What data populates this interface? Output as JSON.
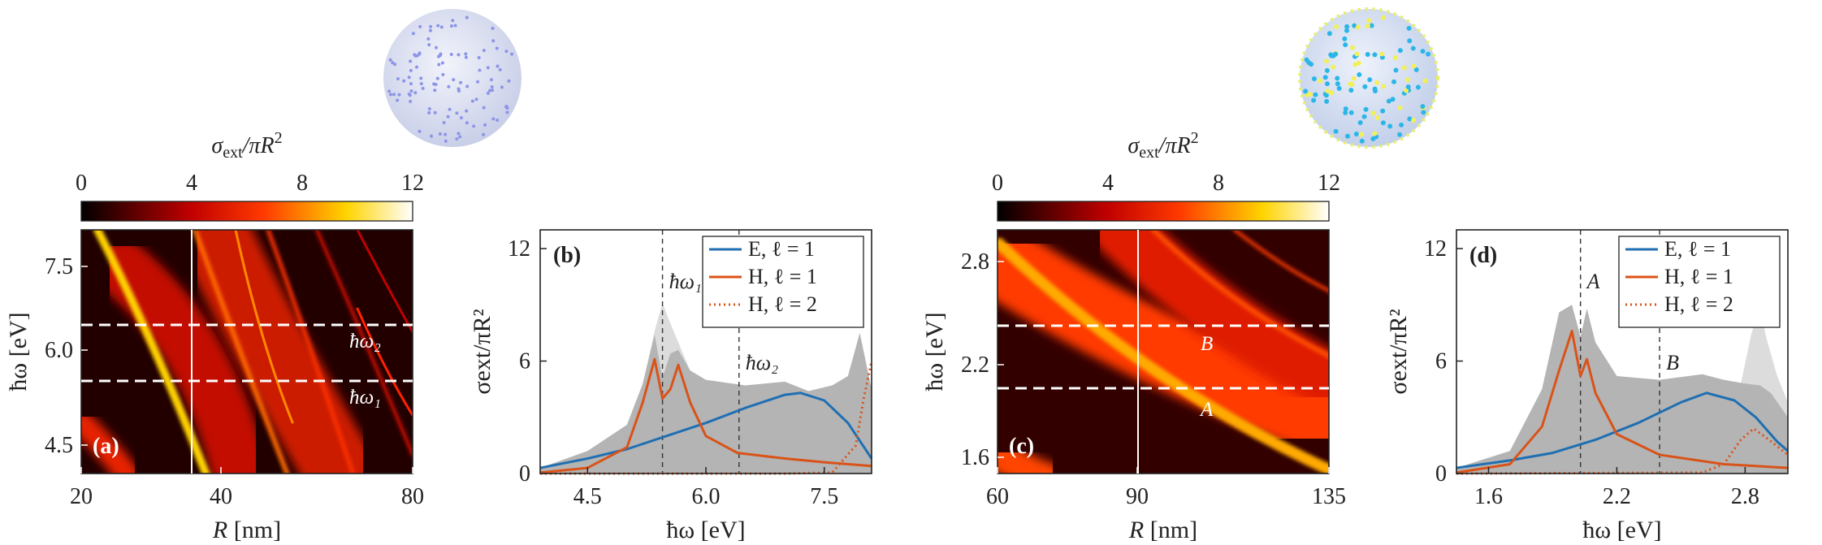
{
  "chart_data": [
    {
      "id": "a",
      "type": "heatmap",
      "panel_label": "(a)",
      "colorbar": {
        "label_main": "σ",
        "label_sub": "ext",
        "label_rest": "/πR",
        "label_sup": "2",
        "ticks": [
          "0",
          "4",
          "8",
          "12"
        ],
        "range": [
          0,
          12
        ]
      },
      "xlabel_var": "R",
      "xlabel_unit": "[nm]",
      "ylabel": "ħω [eV]",
      "x_ticks": [
        "20",
        "40",
        "80"
      ],
      "y_ticks": [
        "7.5",
        "6.0",
        "4.5"
      ],
      "markers": {
        "hline_upper": "ħω₂",
        "hline_lower": "ħω₁"
      }
    },
    {
      "id": "b",
      "type": "line",
      "panel_label": "(b)",
      "xlabel": "ħω [eV]",
      "ylabel": "σext/πR²",
      "x_ticks": [
        "4.5",
        "6.0",
        "7.5"
      ],
      "y_ticks": [
        "0",
        "6",
        "12"
      ],
      "xlim": [
        3.9,
        8.1
      ],
      "ylim": [
        0,
        13
      ],
      "vlines": [
        {
          "x": 5.45,
          "label": "ħω₁"
        },
        {
          "x": 6.42,
          "label": "ħω₂"
        }
      ],
      "series": [
        {
          "name": "E, ℓ = 1",
          "color": "#1f6fb2",
          "style": "solid",
          "x": [
            3.9,
            4.5,
            5.0,
            5.5,
            6.0,
            6.5,
            7.0,
            7.2,
            7.5,
            7.8,
            8.1
          ],
          "y": [
            0.3,
            0.8,
            1.3,
            2.0,
            2.7,
            3.5,
            4.2,
            4.3,
            3.9,
            2.7,
            0.8
          ]
        },
        {
          "name": "H, ℓ = 1",
          "color": "#d95319",
          "style": "solid",
          "x": [
            3.9,
            4.5,
            5.0,
            5.2,
            5.35,
            5.45,
            5.55,
            5.65,
            5.8,
            6.0,
            6.4,
            7.0,
            7.5,
            8.1
          ],
          "y": [
            0.05,
            0.3,
            1.4,
            3.8,
            6.1,
            4.0,
            4.5,
            5.8,
            3.8,
            2.0,
            1.1,
            0.8,
            0.6,
            0.4
          ]
        },
        {
          "name": "H, ℓ = 2",
          "color": "#d95319",
          "style": "dotted",
          "x": [
            3.9,
            7.0,
            7.6,
            7.9,
            8.0,
            8.1
          ],
          "y": [
            0,
            0,
            0.05,
            1.5,
            4.0,
            6.0
          ]
        }
      ],
      "shade": {
        "x": [
          3.9,
          4.5,
          5.0,
          5.2,
          5.35,
          5.45,
          5.55,
          5.65,
          5.8,
          6.0,
          6.5,
          7.0,
          7.3,
          7.6,
          7.8,
          7.95,
          8.1
        ],
        "y": [
          0.3,
          1.2,
          2.6,
          4.8,
          7.4,
          5.1,
          6.4,
          6.6,
          5.5,
          5.0,
          4.7,
          4.9,
          4.4,
          4.7,
          5.2,
          7.5,
          4.5
        ]
      },
      "shade_light": {
        "x": [
          5.2,
          5.35,
          5.45,
          5.55,
          5.65,
          5.8
        ],
        "y": [
          4.8,
          7.6,
          9.1,
          8.0,
          7.0,
          5.5
        ]
      }
    },
    {
      "id": "c",
      "type": "heatmap",
      "panel_label": "(c)",
      "colorbar": {
        "label_main": "σ",
        "label_sub": "ext",
        "label_rest": "/πR",
        "label_sup": "2",
        "ticks": [
          "0",
          "4",
          "8",
          "12"
        ],
        "range": [
          0,
          12
        ]
      },
      "xlabel_var": "R",
      "xlabel_unit": "[nm]",
      "ylabel": "ħω [eV]",
      "x_ticks": [
        "60",
        "90",
        "135"
      ],
      "y_ticks": [
        "2.8",
        "2.2",
        "1.6"
      ],
      "markers": {
        "hline_upper": "B",
        "hline_lower": "A"
      }
    },
    {
      "id": "d",
      "type": "line",
      "panel_label": "(d)",
      "xlabel": "ħω [eV]",
      "ylabel": "σext/πR²",
      "x_ticks": [
        "1.6",
        "2.2",
        "2.8"
      ],
      "y_ticks": [
        "0",
        "6",
        "12"
      ],
      "xlim": [
        1.45,
        3.0
      ],
      "ylim": [
        0,
        13
      ],
      "vlines": [
        {
          "x": 2.03,
          "label": "A"
        },
        {
          "x": 2.4,
          "label": "B"
        }
      ],
      "series": [
        {
          "name": "E, ℓ = 1",
          "color": "#1f6fb2",
          "style": "solid",
          "x": [
            1.45,
            1.7,
            1.9,
            2.1,
            2.3,
            2.5,
            2.62,
            2.75,
            2.85,
            2.95,
            3.0
          ],
          "y": [
            0.3,
            0.7,
            1.1,
            1.8,
            2.7,
            3.8,
            4.3,
            3.9,
            3.0,
            1.7,
            1.2
          ]
        },
        {
          "name": "H, ℓ = 1",
          "color": "#d95319",
          "style": "solid",
          "x": [
            1.45,
            1.7,
            1.85,
            1.93,
            1.99,
            2.03,
            2.06,
            2.1,
            2.2,
            2.4,
            2.7,
            3.0
          ],
          "y": [
            0.05,
            0.5,
            2.5,
            5.5,
            7.6,
            5.2,
            6.1,
            4.3,
            2.1,
            1.0,
            0.5,
            0.3
          ]
        },
        {
          "name": "H, ℓ = 2",
          "color": "#d95319",
          "style": "dotted",
          "x": [
            1.45,
            2.6,
            2.7,
            2.78,
            2.84,
            2.9,
            3.0
          ],
          "y": [
            0,
            0.05,
            0.5,
            1.8,
            2.4,
            1.9,
            1.0
          ]
        }
      ],
      "shade": {
        "x": [
          1.45,
          1.7,
          1.85,
          1.93,
          1.99,
          2.03,
          2.06,
          2.1,
          2.2,
          2.4,
          2.6,
          2.7,
          2.8,
          2.87,
          2.92,
          3.0
        ],
        "y": [
          0.3,
          1.2,
          4.5,
          8.6,
          9.0,
          7.3,
          8.8,
          7.0,
          5.2,
          5.0,
          5.3,
          5.0,
          4.8,
          4.7,
          4.3,
          3.0
        ]
      },
      "shade_light": {
        "x": [
          2.78,
          2.83,
          2.87,
          2.9,
          2.95,
          3.0
        ],
        "y": [
          4.8,
          7.5,
          8.8,
          7.2,
          5.2,
          3.8
        ]
      }
    }
  ]
}
